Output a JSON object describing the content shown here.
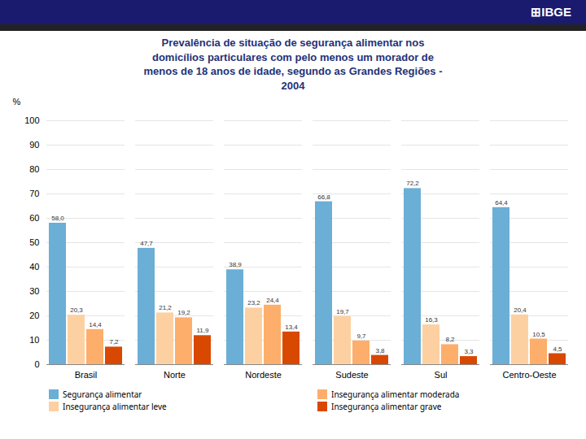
{
  "chart_data": {
    "type": "bar",
    "title": "Prevalência de situação de segurança alimentar nos\ndomicílios particulares com pelo menos um morador de\nmenos de 18 anos de idade, segundo as Grandes Regiões -\n2004",
    "annotations": [
      "⊞IBGE"
    ],
    "ylabel": "%",
    "categories": [
      "Brasil",
      "Norte",
      "Nordeste",
      "Sudeste",
      "Sul",
      "Centro-Oeste"
    ],
    "series": [
      {
        "name": "Segurança alimentar",
        "color": "#6baed6",
        "values": [
          58.0,
          47.7,
          38.9,
          66.8,
          72.2,
          64.4
        ],
        "value_labels": [
          "58,0",
          "47,7",
          "38,9",
          "66,8",
          "72,2",
          "64,4"
        ]
      },
      {
        "name": "Insegurança alimentar leve",
        "color": "#fdd0a2",
        "values": [
          20.3,
          21.2,
          23.2,
          19.7,
          16.3,
          20.4
        ],
        "value_labels": [
          "20,3",
          "21,2",
          "23,2",
          "19,7",
          "16,3",
          "20,4"
        ]
      },
      {
        "name": "Insegurança alimentar moderada",
        "color": "#fdae6b",
        "values": [
          14.4,
          19.2,
          24.4,
          9.7,
          8.2,
          10.5
        ],
        "value_labels": [
          "14,4",
          "19,2",
          "24,4",
          "9,7",
          "8,2",
          "10,5"
        ]
      },
      {
        "name": "Insegurança alimentar grave",
        "color": "#d94801",
        "values": [
          7.2,
          11.9,
          13.4,
          3.8,
          3.3,
          4.5
        ],
        "value_labels": [
          "7,2",
          "11,9",
          "13,4",
          "3,8",
          "3,3",
          "4,5"
        ]
      }
    ],
    "ylim": [
      0,
      100
    ],
    "yticks": [
      0,
      10,
      20,
      30,
      40,
      50,
      60,
      70,
      80,
      90,
      100
    ],
    "grid": true,
    "data_labels": true,
    "legend": "bottom"
  }
}
